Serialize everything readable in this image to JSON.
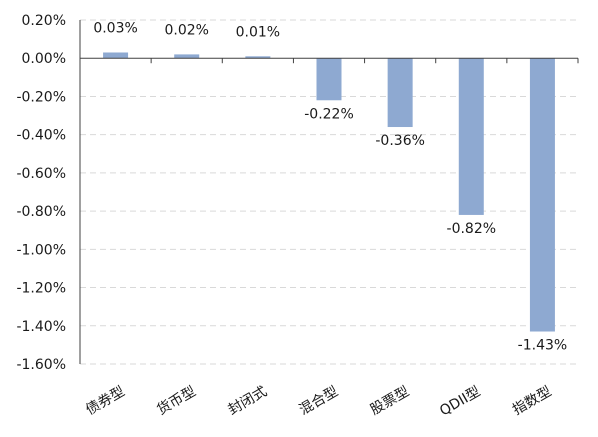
{
  "chart_data": {
    "type": "bar",
    "categories": [
      "债券型",
      "货币型",
      "封闭式",
      "混合型",
      "股票型",
      "QDII型",
      "指数型"
    ],
    "values": [
      0.03,
      0.02,
      0.01,
      -0.22,
      -0.36,
      -0.82,
      -1.43
    ],
    "data_labels": [
      "0.03%",
      "0.02%",
      "0.01%",
      "-0.22%",
      "-0.36%",
      "-0.82%",
      "-1.43%"
    ],
    "ylim": [
      -1.6,
      0.2
    ],
    "yticks": [
      0.2,
      0.0,
      -0.2,
      -0.4,
      -0.6,
      -0.8,
      -1.0,
      -1.2,
      -1.4,
      -1.6
    ],
    "ytick_labels": [
      "0.20%",
      "0.00%",
      "-0.20%",
      "-0.40%",
      "-0.60%",
      "-0.80%",
      "-1.00%",
      "-1.20%",
      "-1.40%",
      "-1.60%"
    ],
    "grid": true,
    "bar_color": "#8ea9d1",
    "title": "",
    "xlabel": "",
    "ylabel": ""
  }
}
